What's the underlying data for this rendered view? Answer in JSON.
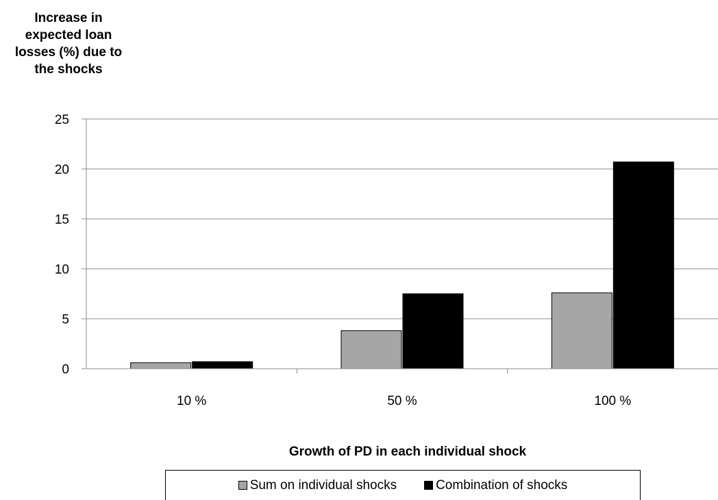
{
  "chart_data": {
    "type": "bar",
    "ylabel_lines": [
      "Increase in",
      "expected loan",
      "losses (%) due to",
      "the shocks"
    ],
    "xlabel": "Growth of PD in each individual shock",
    "categories": [
      "10 %",
      "50 %",
      "100 %"
    ],
    "ylim": [
      0,
      25
    ],
    "yticks": [
      "0",
      "5",
      "10",
      "15",
      "20",
      "25"
    ],
    "grid": true,
    "legend_position": "bottom",
    "series": [
      {
        "name": "Sum on individual shocks",
        "values": [
          0.6,
          3.8,
          7.6
        ],
        "color": "#a6a6a6"
      },
      {
        "name": "Combination of shocks",
        "values": [
          0.7,
          7.5,
          20.7
        ],
        "color": "#000000"
      }
    ]
  }
}
